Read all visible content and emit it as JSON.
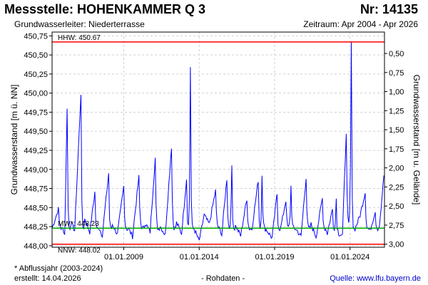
{
  "header": {
    "title": "Messstelle: HOHENKAMMER Q 3",
    "number": "Nr: 14135",
    "aquifer": "Grundwasserleiter:   Niederterrasse",
    "period": "Zeitraum: Apr 2004 - Apr 2026"
  },
  "footer": {
    "note": "* Abflussjahr (2003-2024)",
    "created": "erstellt:  14.04.2026",
    "rawdata": "- Rohdaten -",
    "source": "Quelle: www.lfu.bayern.de"
  },
  "colors": {
    "series": "#0000ff",
    "hhw": "#ff0000",
    "nnw": "#ff0000",
    "mw": "#00aa00"
  },
  "chart_data": {
    "type": "line",
    "ylabel": "Grundwasserstand [m ü. NN]",
    "y2label": "Grundwasserstand [m u. Gelände]",
    "ylim": [
      447.98,
      450.8
    ],
    "xlim": [
      "2004-04-01",
      "2026-04-14"
    ],
    "y_ticks": [
      "448,00",
      "448,25",
      "448,50",
      "448,75",
      "449,00",
      "449,25",
      "449,50",
      "449,75",
      "450,00",
      "450,25",
      "450,50",
      "450,75"
    ],
    "y2_ticks": [
      "3,00",
      "2,75",
      "2,50",
      "2,25",
      "2,00",
      "1,75",
      "1,50",
      "1,25",
      "1,00",
      "0,75",
      "0,50"
    ],
    "x_ticks": [
      "01.01.2009",
      "01.01.2014",
      "01.01.2019",
      "01.01.2024"
    ],
    "grid": true,
    "reference_lines": [
      {
        "label": "HHW: 450.67",
        "value": 450.67
      },
      {
        "label": "MW*: 448.23",
        "value": 448.23
      },
      {
        "label": "NNW: 448.02",
        "value": 448.02
      }
    ],
    "series": [
      {
        "x": [
          "2004-04-01",
          "2004-09-01",
          "2005-02-01",
          "2005-04-01",
          "2005-07-01",
          "2005-10-01",
          "2006-03-01",
          "2006-06-01",
          "2006-10-01",
          "2007-02-01",
          "2007-05-01",
          "2007-08-01",
          "2008-01-01",
          "2008-04-01",
          "2008-08-01",
          "2009-01-01",
          "2009-05-01",
          "2009-08-01",
          "2010-01-01",
          "2010-06-01",
          "2010-10-01",
          "2011-02-01",
          "2011-06-01",
          "2011-10-01",
          "2012-03-01",
          "2012-07-01",
          "2012-11-01",
          "2013-03-01",
          "2013-06-01",
          "2013-09-01",
          "2014-01-01",
          "2014-05-01",
          "2014-09-01",
          "2015-02-01",
          "2015-07-01",
          "2015-11-01",
          "2016-03-01",
          "2016-06-01",
          "2016-10-01",
          "2017-03-01",
          "2017-07-01",
          "2017-12-01",
          "2018-03-01",
          "2018-07-01",
          "2018-11-01",
          "2019-03-01",
          "2019-06-01",
          "2019-10-01",
          "2020-02-01",
          "2020-06-01",
          "2020-10-01",
          "2021-02-01",
          "2021-06-01",
          "2021-10-01",
          "2022-03-01",
          "2022-07-01",
          "2022-11-01",
          "2023-02-01",
          "2023-04-01",
          "2023-07-01",
          "2023-10-01",
          "2024-02-01",
          "2024-05-01",
          "2024-09-01",
          "2025-01-01",
          "2025-05-01",
          "2025-09-01",
          "2026-01-01",
          "2026-04-01"
        ],
        "y": [
          448.23,
          448.48,
          448.15,
          449.82,
          448.3,
          448.2,
          450.0,
          448.35,
          448.18,
          448.7,
          448.25,
          448.14,
          448.95,
          448.28,
          448.15,
          448.78,
          448.22,
          448.12,
          448.9,
          448.3,
          448.18,
          449.15,
          448.26,
          448.14,
          449.3,
          448.3,
          448.16,
          448.88,
          450.35,
          448.22,
          448.06,
          448.4,
          448.28,
          448.72,
          448.14,
          448.88,
          449.05,
          448.26,
          448.13,
          448.62,
          448.22,
          448.86,
          448.95,
          448.2,
          448.1,
          448.68,
          448.24,
          448.6,
          448.78,
          448.22,
          448.12,
          448.9,
          448.28,
          448.12,
          448.62,
          448.16,
          448.48,
          448.62,
          448.16,
          448.14,
          449.5,
          450.65,
          448.22,
          448.4,
          448.7,
          448.2,
          448.45,
          448.35,
          448.92
        ]
      }
    ]
  }
}
